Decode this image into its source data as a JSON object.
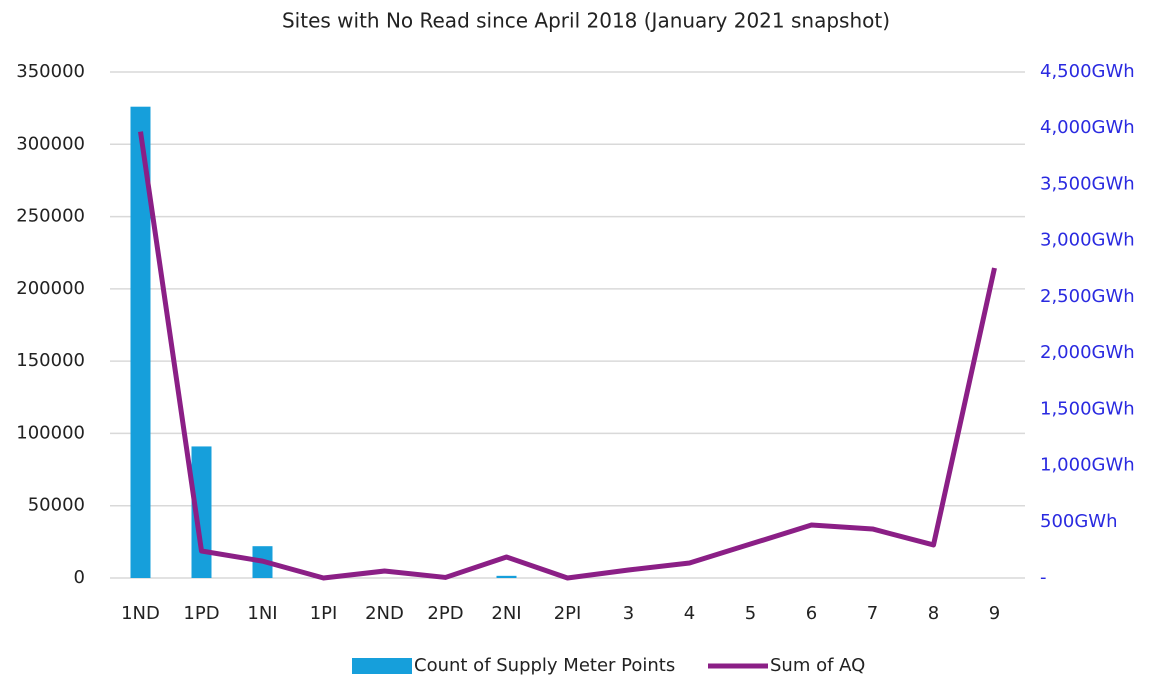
{
  "chart_data": {
    "type": "bar-line",
    "title": "Sites with No Read since April 2018 (January 2021 snapshot)",
    "categories": [
      "1ND",
      "1PD",
      "1NI",
      "1PI",
      "2ND",
      "2PD",
      "2NI",
      "2PI",
      "3",
      "4",
      "5",
      "6",
      "7",
      "8",
      "9"
    ],
    "series": [
      {
        "name": "Count of Supply Meter Points",
        "type": "bar",
        "color": "#169fdb",
        "axis": "y",
        "values": [
          326000,
          91000,
          22000,
          300,
          0,
          0,
          1500,
          0,
          0,
          0,
          0,
          0,
          0,
          0,
          0
        ]
      },
      {
        "name": "Sum of AQ",
        "type": "line",
        "color": "#8b1f86",
        "axis": "y2",
        "values": [
          3970,
          240,
          150,
          0,
          62,
          5,
          187,
          0,
          71,
          133,
          302,
          471,
          436,
          294,
          2757
        ]
      }
    ],
    "ylim": [
      0,
      350000
    ],
    "yticks": [
      0,
      50000,
      100000,
      150000,
      200000,
      250000,
      300000,
      350000
    ],
    "y2lim": [
      0,
      4500
    ],
    "y2ticks": [
      {
        "value": 0,
        "label": "-"
      },
      {
        "value": 500,
        "label": "500GWh"
      },
      {
        "value": 1000,
        "label": "1,000GWh"
      },
      {
        "value": 1500,
        "label": "1,500GWh"
      },
      {
        "value": 2000,
        "label": "2,000GWh"
      },
      {
        "value": 2500,
        "label": "2,500GWh"
      },
      {
        "value": 3000,
        "label": "3,000GWh"
      },
      {
        "value": 3500,
        "label": "3,500GWh"
      },
      {
        "value": 4000,
        "label": "4,000GWh"
      },
      {
        "value": 4500,
        "label": "4,500GWh"
      }
    ],
    "y2_color": "#2a2ae0",
    "grid": true,
    "legend": "bottom"
  }
}
